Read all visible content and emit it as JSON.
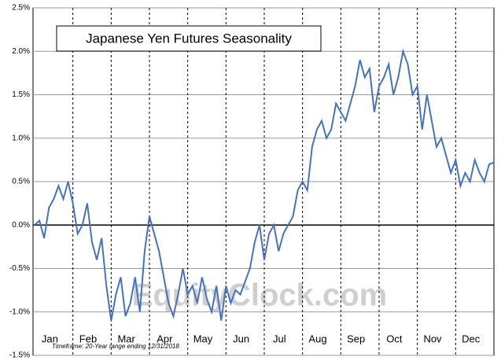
{
  "chart_data": {
    "type": "line",
    "title": "Japanese Yen Futures Seasonality",
    "footnote": "Timeframe:  20-Year range ending 12/31/2018",
    "watermark": "EquityClock.com",
    "xlim": [
      0,
      12
    ],
    "xticks": [
      {
        "value": 0.5,
        "label": "Jan"
      },
      {
        "value": 1.5,
        "label": "Feb"
      },
      {
        "value": 2.5,
        "label": "Mar"
      },
      {
        "value": 3.5,
        "label": "Apr"
      },
      {
        "value": 4.5,
        "label": "May"
      },
      {
        "value": 5.5,
        "label": "Jun"
      },
      {
        "value": 6.5,
        "label": "Jul"
      },
      {
        "value": 7.5,
        "label": "Aug"
      },
      {
        "value": 8.5,
        "label": "Sep"
      },
      {
        "value": 9.5,
        "label": "Oct"
      },
      {
        "value": 10.5,
        "label": "Nov"
      },
      {
        "value": 11.5,
        "label": "Dec"
      }
    ],
    "ylim": [
      -1.5,
      2.5
    ],
    "yticks": [
      {
        "value": -1.5,
        "label": "-1.5%"
      },
      {
        "value": -1,
        "label": "-1.0%"
      },
      {
        "value": -0.5,
        "label": "-0.5%"
      },
      {
        "value": 0,
        "label": "0.0%"
      },
      {
        "value": 0.5,
        "label": "0.5%"
      },
      {
        "value": 1,
        "label": "1.0%"
      },
      {
        "value": 1.5,
        "label": "1.5%"
      },
      {
        "value": 2,
        "label": "2.0%"
      },
      {
        "value": 2.5,
        "label": "2.5%"
      }
    ],
    "grid": true,
    "x": [
      0,
      0.125,
      0.25,
      0.375,
      0.5,
      0.625,
      0.75,
      0.875,
      1,
      1.125,
      1.25,
      1.375,
      1.5,
      1.625,
      1.75,
      1.875,
      2,
      2.125,
      2.25,
      2.375,
      2.5,
      2.625,
      2.75,
      2.875,
      3,
      3.125,
      3.25,
      3.375,
      3.5,
      3.625,
      3.75,
      3.875,
      4,
      4.125,
      4.25,
      4.375,
      4.5,
      4.625,
      4.75,
      4.875,
      5,
      5.125,
      5.25,
      5.375,
      5.5,
      5.625,
      5.75,
      5.875,
      6,
      6.125,
      6.25,
      6.375,
      6.5,
      6.625,
      6.75,
      6.875,
      7,
      7.125,
      7.25,
      7.375,
      7.5,
      7.625,
      7.75,
      7.875,
      8,
      8.125,
      8.25,
      8.375,
      8.5,
      8.625,
      8.75,
      8.875,
      9,
      9.125,
      9.25,
      9.375,
      9.5,
      9.625,
      9.75,
      9.875,
      10,
      10.125,
      10.25,
      10.375,
      10.5,
      10.625,
      10.75,
      10.875,
      11,
      11.125,
      11.25,
      11.375,
      11.5,
      11.625,
      11.75,
      11.875,
      12
    ],
    "series": [
      {
        "color": "#4472c4",
        "values": [
          0,
          0.05,
          -0.15,
          0.2,
          0.3,
          0.45,
          0.3,
          0.5,
          0.25,
          -0.1,
          0,
          0.25,
          -0.2,
          -0.4,
          -0.15,
          -0.7,
          -1.1,
          -0.8,
          -0.6,
          -1.05,
          -0.9,
          -0.6,
          -1,
          -0.3,
          0.1,
          -0.1,
          -0.3,
          -0.6,
          -0.9,
          -1.05,
          -0.8,
          -0.5,
          -0.8,
          -0.7,
          -0.9,
          -0.6,
          -0.85,
          -1,
          -0.7,
          -1.1,
          -0.7,
          -0.9,
          -0.75,
          -0.8,
          -0.65,
          -0.5,
          -0.2,
          0,
          -0.4,
          -0.1,
          0,
          -0.3,
          -0.1,
          0,
          0.1,
          0.4,
          0.5,
          0.4,
          0.9,
          1.1,
          1.2,
          1,
          1.1,
          1.4,
          1.3,
          1.2,
          1.4,
          1.6,
          1.9,
          1.7,
          1.8,
          1.3,
          1.6,
          1.7,
          1.85,
          1.5,
          1.7,
          2,
          1.85,
          1.5,
          1.6,
          1.1,
          1.5,
          1.2,
          0.9,
          1,
          0.8,
          0.6,
          0.75,
          0.45,
          0.6,
          0.5,
          0.75,
          0.6,
          0.5,
          0.7,
          0.72
        ]
      }
    ]
  }
}
